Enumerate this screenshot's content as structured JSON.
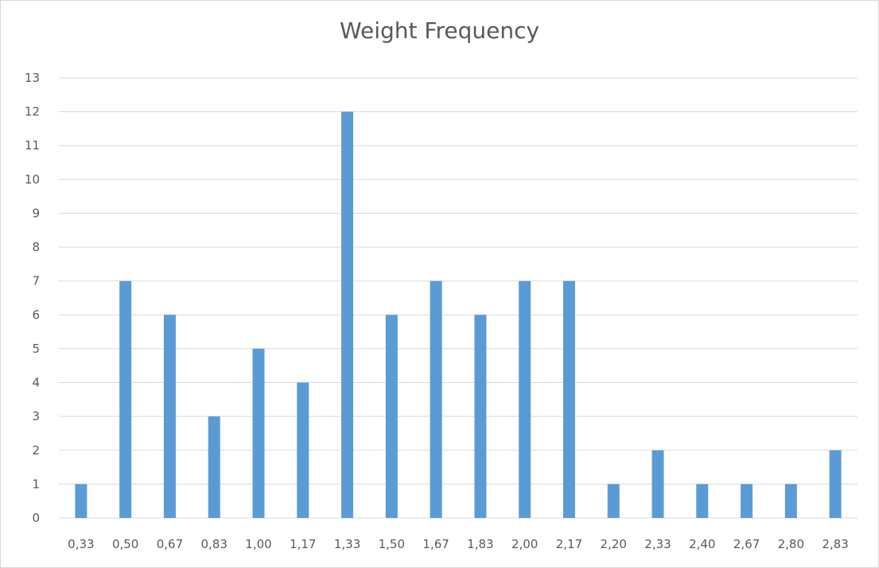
{
  "chart_data": {
    "type": "bar",
    "title": "Weight Frequency",
    "xlabel": "",
    "ylabel": "",
    "categories": [
      "0,33",
      "0,50",
      "0,67",
      "0,83",
      "1,00",
      "1,17",
      "1,33",
      "1,50",
      "1,67",
      "1,83",
      "2,00",
      "2,17",
      "2,20",
      "2,33",
      "2,40",
      "2,67",
      "2,80",
      "2,83"
    ],
    "values": [
      1,
      7,
      6,
      3,
      5,
      4,
      12,
      6,
      7,
      6,
      7,
      7,
      1,
      2,
      1,
      1,
      1,
      2
    ],
    "ylim": [
      0,
      13
    ],
    "yticks": [
      "0",
      "1",
      "2",
      "3",
      "4",
      "5",
      "6",
      "7",
      "8",
      "9",
      "10",
      "11",
      "12",
      "13"
    ],
    "grid": true,
    "legend": "none",
    "bar_color": "#5b9bd5",
    "grid_color": "#d9d9d9",
    "text_color": "#595959"
  }
}
